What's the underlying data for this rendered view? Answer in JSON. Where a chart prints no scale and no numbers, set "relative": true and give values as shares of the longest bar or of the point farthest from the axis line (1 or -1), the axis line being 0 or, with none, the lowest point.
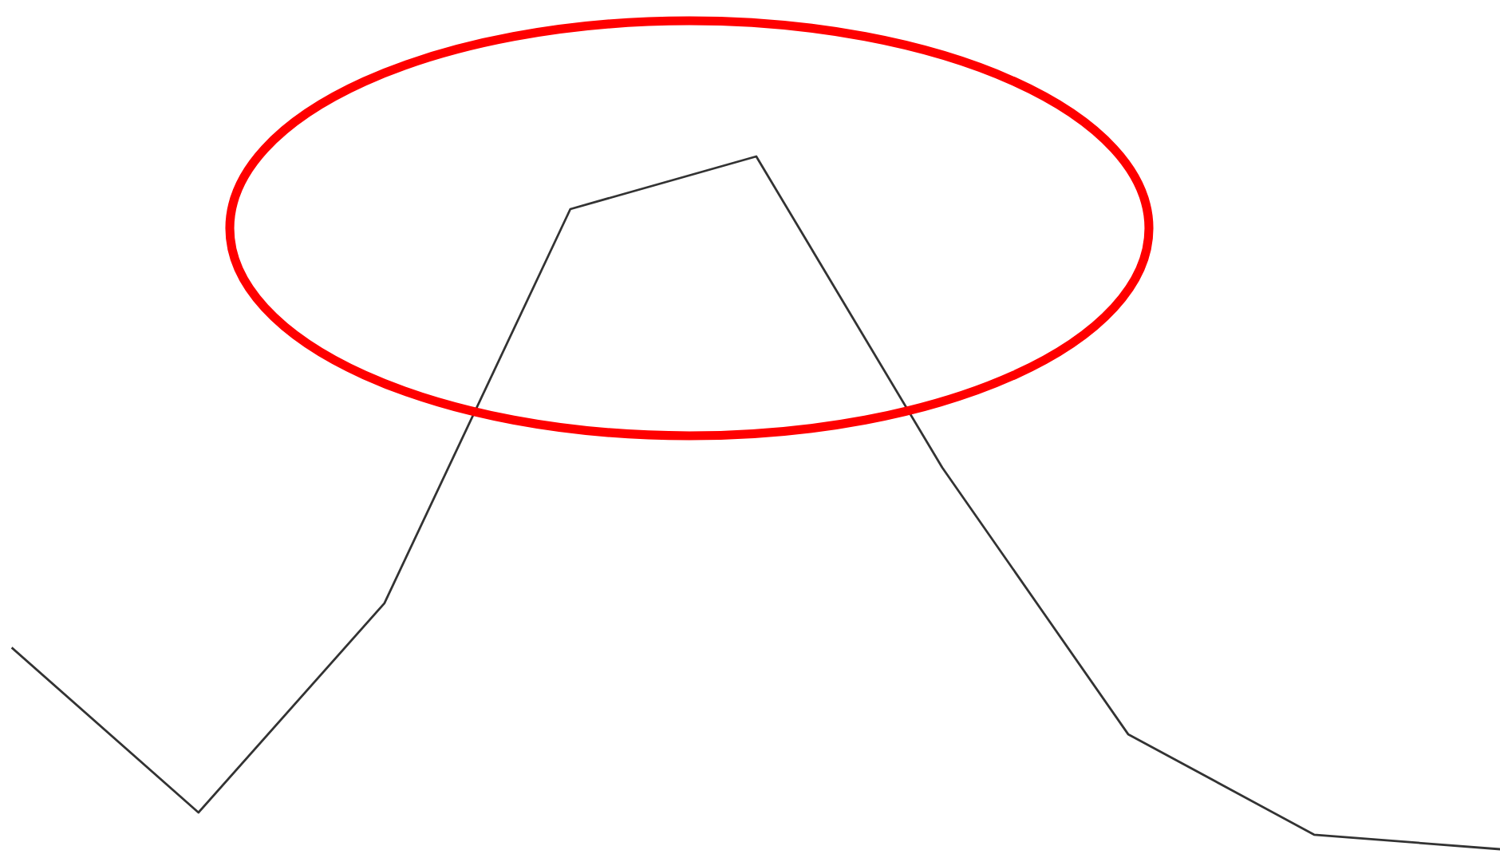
{
  "chart_data": {
    "type": "line",
    "relative": true,
    "categories": [
      null,
      null,
      null,
      null,
      null,
      null,
      null,
      null,
      null
    ],
    "series": [
      {
        "color": "#333333",
        "values": [
          0.29,
          0.053,
          0.355,
          0.924,
          1,
          0.551,
          0.166,
          0.021,
          0
        ]
      }
    ],
    "marker": "none",
    "line_style": "solid"
  }
}
